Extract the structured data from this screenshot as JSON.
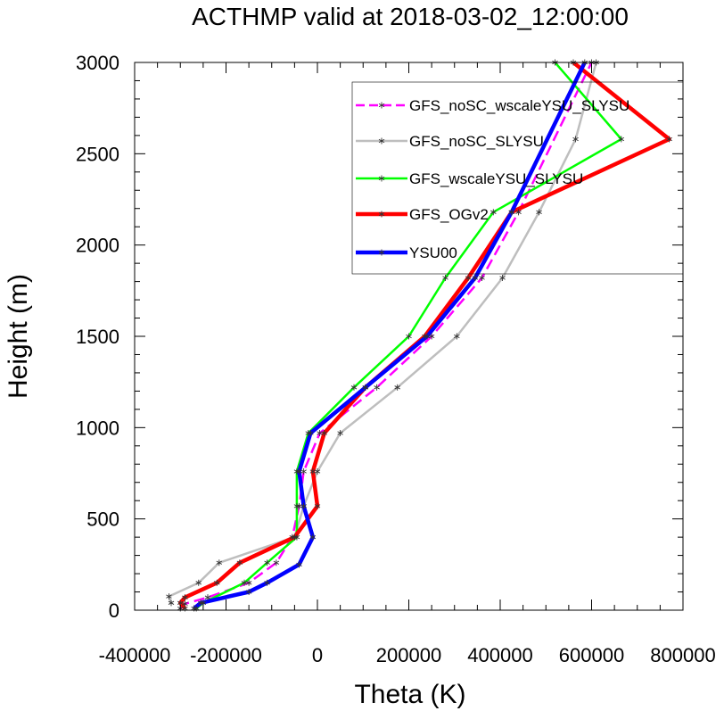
{
  "chart_data": {
    "type": "line",
    "title": "ACTHMP valid at 2018-03-02_12:00:00",
    "xlabel": "Theta (K)",
    "ylabel": "Height (m)",
    "xlim": [
      -400000,
      800000
    ],
    "ylim": [
      0,
      3000
    ],
    "xticks": [
      -400000,
      -200000,
      0,
      200000,
      400000,
      600000,
      800000
    ],
    "xtick_labels": [
      "-400000",
      "-200000",
      "0",
      "200000",
      "400000",
      "600000",
      "800000"
    ],
    "yticks": [
      0,
      500,
      1000,
      1500,
      2000,
      2500,
      3000
    ],
    "ytick_labels": [
      "0",
      "500",
      "1000",
      "1500",
      "2000",
      "2500",
      "3000"
    ],
    "grid": false,
    "legend_position": "top-right",
    "series": [
      {
        "name": "GFS_noSC_wscaleYSU_SLYSU",
        "color": "#ff00ff",
        "dash": "dashed",
        "points": [
          [
            -300000,
            10
          ],
          [
            -290000,
            35
          ],
          [
            -240000,
            70
          ],
          [
            -150000,
            150
          ],
          [
            -90000,
            260
          ],
          [
            -55000,
            400
          ],
          [
            -40000,
            570
          ],
          [
            -30000,
            760
          ],
          [
            5000,
            970
          ],
          [
            130000,
            1220
          ],
          [
            250000,
            1500
          ],
          [
            360000,
            1820
          ],
          [
            440000,
            2180
          ],
          [
            600000,
            3000
          ]
        ]
      },
      {
        "name": "GFS_noSC_SLYSU",
        "color": "#bebebe",
        "dash": "solid",
        "points": [
          [
            -320000,
            40
          ],
          [
            -325000,
            75
          ],
          [
            -260000,
            150
          ],
          [
            -215000,
            260
          ],
          [
            -50000,
            400
          ],
          [
            -30000,
            570
          ],
          [
            0,
            760
          ],
          [
            50000,
            970
          ],
          [
            175000,
            1220
          ],
          [
            305000,
            1500
          ],
          [
            405000,
            1820
          ],
          [
            485000,
            2180
          ],
          [
            565000,
            2580
          ],
          [
            610000,
            3000
          ]
        ]
      },
      {
        "name": "GFS_wscaleYSU_SLYSU",
        "color": "#00ff00",
        "dash": "solid",
        "points": [
          [
            -265000,
            10
          ],
          [
            -250000,
            40
          ],
          [
            -160000,
            150
          ],
          [
            -110000,
            260
          ],
          [
            -45000,
            400
          ],
          [
            -45000,
            570
          ],
          [
            -45000,
            760
          ],
          [
            -20000,
            970
          ],
          [
            80000,
            1220
          ],
          [
            200000,
            1500
          ],
          [
            280000,
            1820
          ],
          [
            385000,
            2180
          ],
          [
            665000,
            2580
          ],
          [
            520000,
            3000
          ]
        ]
      },
      {
        "name": "GFS_OGv2",
        "color": "#ff0000",
        "dash": "solid",
        "points": [
          [
            -290000,
            10
          ],
          [
            -300000,
            40
          ],
          [
            -290000,
            70
          ],
          [
            -220000,
            150
          ],
          [
            -170000,
            260
          ],
          [
            -50000,
            400
          ],
          [
            0,
            570
          ],
          [
            -10000,
            760
          ],
          [
            15000,
            970
          ],
          [
            105000,
            1220
          ],
          [
            235000,
            1500
          ],
          [
            330000,
            1820
          ],
          [
            425000,
            2180
          ],
          [
            770000,
            2580
          ],
          [
            560000,
            3000
          ]
        ]
      },
      {
        "name": "YSU00",
        "color": "#0000ff",
        "dash": "solid",
        "points": [
          [
            -270000,
            10
          ],
          [
            -255000,
            40
          ],
          [
            -150000,
            100
          ],
          [
            -110000,
            150
          ],
          [
            -40000,
            250
          ],
          [
            -10000,
            400
          ],
          [
            -30000,
            570
          ],
          [
            -40000,
            760
          ],
          [
            -15000,
            970
          ],
          [
            105000,
            1220
          ],
          [
            240000,
            1500
          ],
          [
            345000,
            1820
          ],
          [
            425000,
            2180
          ],
          [
            585000,
            3000
          ]
        ]
      }
    ]
  }
}
